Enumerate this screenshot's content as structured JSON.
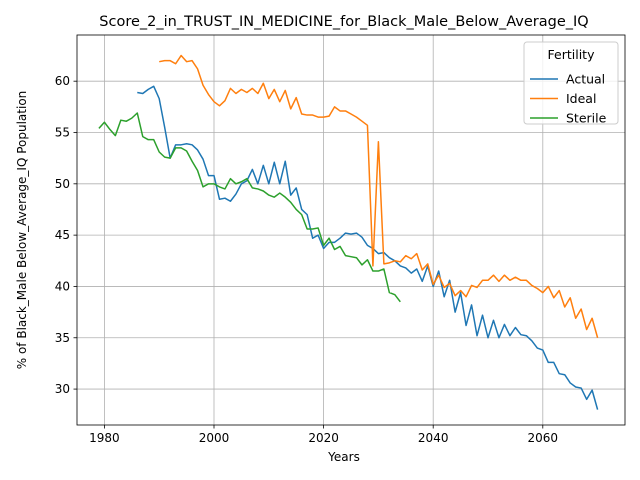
{
  "chart_data": {
    "type": "line",
    "title": "Score_2_in_TRUST_IN_MEDICINE_for_Black_Male_Below_Average_IQ",
    "xlabel": "Years",
    "ylabel": "% of Black_Male Below_Average_IQ Population",
    "xlim": [
      1975,
      2075
    ],
    "ylim": [
      26.5,
      64.5
    ],
    "xticks": [
      "1980",
      "2000",
      "2020",
      "2040",
      "2060"
    ],
    "yticks": [
      "30",
      "35",
      "40",
      "45",
      "50",
      "55",
      "60"
    ],
    "grid": true,
    "legend": {
      "title": "Fertility",
      "position": "upper-right"
    },
    "series": [
      {
        "name": "Actual",
        "color": "#1f77b4",
        "x": [
          1986,
          1987,
          1988,
          1989,
          1990,
          1991,
          1992,
          1993,
          1994,
          1995,
          1996,
          1997,
          1998,
          1999,
          2000,
          2001,
          2002,
          2003,
          2004,
          2005,
          2006,
          2007,
          2008,
          2009,
          2010,
          2011,
          2012,
          2013,
          2014,
          2015,
          2016,
          2017,
          2018,
          2019,
          2020,
          2021,
          2022,
          2023,
          2024,
          2025,
          2026,
          2027,
          2028,
          2029,
          2030,
          2031,
          2032,
          2033,
          2034,
          2035,
          2036,
          2037,
          2038,
          2039,
          2040,
          2041,
          2042,
          2043,
          2044,
          2045,
          2046,
          2047,
          2048,
          2049,
          2050,
          2051,
          2052,
          2053,
          2054,
          2055,
          2056,
          2057,
          2058,
          2059,
          2060,
          2061,
          2062,
          2063,
          2064,
          2065,
          2066,
          2067,
          2068,
          2069,
          2070
        ],
        "y": [
          58.9,
          58.8,
          59.2,
          59.5,
          58.3,
          55.5,
          52.5,
          53.8,
          53.8,
          53.9,
          53.8,
          53.3,
          52.4,
          50.8,
          50.8,
          48.5,
          48.6,
          48.3,
          49.0,
          50.0,
          50.3,
          51.4,
          50.0,
          51.8,
          50.0,
          52.1,
          50.0,
          52.2,
          48.9,
          49.6,
          47.5,
          47.0,
          44.7,
          45.0,
          43.7,
          44.3,
          44.3,
          44.7,
          45.2,
          45.1,
          45.2,
          44.8,
          44.0,
          43.7,
          43.2,
          43.3,
          42.8,
          42.5,
          42.0,
          41.8,
          41.3,
          41.7,
          40.5,
          42.0,
          40.0,
          41.5,
          39.0,
          40.6,
          37.5,
          39.4,
          36.2,
          38.2,
          35.2,
          37.2,
          35.0,
          36.7,
          35.0,
          36.3,
          35.2,
          36.0,
          35.3,
          35.2,
          34.7,
          34.0,
          33.8,
          32.6,
          32.6,
          31.5,
          31.4,
          30.6,
          30.2,
          30.1,
          29.0,
          29.9,
          28.0
        ]
      },
      {
        "name": "Ideal",
        "color": "#ff7f0e",
        "x": [
          1990,
          1991,
          1992,
          1993,
          1994,
          1995,
          1996,
          1997,
          1998,
          1999,
          2000,
          2001,
          2002,
          2003,
          2004,
          2005,
          2006,
          2007,
          2008,
          2009,
          2010,
          2011,
          2012,
          2013,
          2014,
          2015,
          2016,
          2017,
          2018,
          2019,
          2020,
          2021,
          2022,
          2023,
          2024,
          2025,
          2026,
          2027,
          2028,
          2029,
          2030,
          2031,
          2032,
          2033,
          2034,
          2035,
          2036,
          2037,
          2038,
          2039,
          2040,
          2041,
          2042,
          2043,
          2044,
          2045,
          2046,
          2047,
          2048,
          2049,
          2050,
          2051,
          2052,
          2053,
          2054,
          2055,
          2056,
          2057,
          2058,
          2059,
          2060,
          2061,
          2062,
          2063,
          2064,
          2065,
          2066,
          2067,
          2068,
          2069,
          2070
        ],
        "y": [
          61.9,
          62.0,
          62.0,
          61.7,
          62.5,
          61.9,
          62.0,
          61.2,
          59.6,
          58.7,
          58.0,
          57.6,
          58.1,
          59.3,
          58.8,
          59.2,
          58.9,
          59.3,
          58.8,
          59.8,
          58.3,
          59.2,
          58.0,
          59.1,
          57.3,
          58.4,
          56.8,
          56.7,
          56.7,
          56.5,
          56.5,
          56.6,
          57.5,
          57.1,
          57.1,
          56.8,
          56.5,
          56.1,
          55.7,
          42.0,
          54.1,
          42.2,
          42.3,
          42.5,
          42.4,
          43.0,
          42.7,
          43.2,
          41.6,
          42.2,
          40.2,
          41.1,
          39.9,
          40.3,
          39.1,
          39.6,
          39.0,
          40.1,
          39.9,
          40.6,
          40.6,
          41.1,
          40.5,
          41.1,
          40.6,
          40.9,
          40.6,
          40.6,
          40.1,
          39.8,
          39.4,
          40.0,
          38.9,
          39.6,
          38.0,
          38.9,
          36.9,
          37.8,
          35.8,
          36.9,
          35.0
        ]
      },
      {
        "name": "Sterile",
        "color": "#2ca02c",
        "x": [
          1979,
          1980,
          1981,
          1982,
          1983,
          1984,
          1985,
          1986,
          1987,
          1988,
          1989,
          1990,
          1991,
          1992,
          1993,
          1994,
          1995,
          1996,
          1997,
          1998,
          1999,
          2000,
          2001,
          2002,
          2003,
          2004,
          2005,
          2006,
          2007,
          2008,
          2009,
          2010,
          2011,
          2012,
          2013,
          2014,
          2015,
          2016,
          2017,
          2018,
          2019,
          2020,
          2021,
          2022,
          2023,
          2024,
          2025,
          2026,
          2027,
          2028,
          2029,
          2030,
          2031,
          2032,
          2033,
          2034
        ],
        "y": [
          55.4,
          56.0,
          55.3,
          54.7,
          56.2,
          56.1,
          56.4,
          56.9,
          54.6,
          54.3,
          54.3,
          53.1,
          52.6,
          52.5,
          53.5,
          53.5,
          53.2,
          52.2,
          51.3,
          49.7,
          50.0,
          50.0,
          49.7,
          49.5,
          50.5,
          50.0,
          50.2,
          50.5,
          49.6,
          49.5,
          49.3,
          48.9,
          48.7,
          49.1,
          48.7,
          48.2,
          47.5,
          47.0,
          45.6,
          45.6,
          45.7,
          44.0,
          44.7,
          43.6,
          43.9,
          43.0,
          42.9,
          42.8,
          42.1,
          42.6,
          41.5,
          41.5,
          41.7,
          39.4,
          39.2,
          38.5
        ]
      }
    ]
  }
}
